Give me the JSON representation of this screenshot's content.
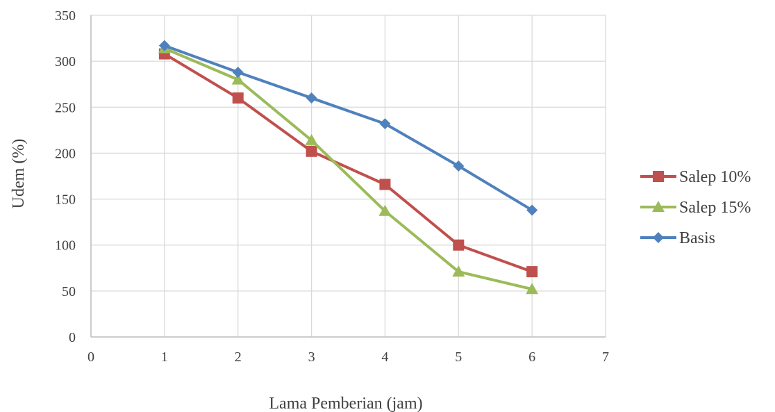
{
  "chart_data": {
    "type": "line",
    "title": "",
    "xlabel": "Lama Pemberian (jam)",
    "ylabel": "Udem (%)",
    "xlim": [
      0,
      7
    ],
    "ylim": [
      0,
      350
    ],
    "x_ticks": [
      "0",
      "1",
      "2",
      "3",
      "4",
      "5",
      "6",
      "7"
    ],
    "y_ticks": [
      "0",
      "50",
      "100",
      "150",
      "200",
      "250",
      "300",
      "350"
    ],
    "grid": true,
    "legend_position": "right",
    "x": [
      1,
      2,
      3,
      4,
      5,
      6
    ],
    "series": [
      {
        "name": "Salep 10%",
        "color": "#c0504d",
        "marker": "square",
        "values": [
          308,
          260,
          202,
          166,
          100,
          71
        ]
      },
      {
        "name": "Salep 15%",
        "color": "#9bbb59",
        "marker": "triangle",
        "values": [
          314,
          280,
          214,
          137,
          71,
          52
        ]
      },
      {
        "name": "Basis",
        "color": "#4f81bd",
        "marker": "diamond",
        "values": [
          317,
          288,
          260,
          232,
          186,
          138
        ]
      }
    ]
  }
}
